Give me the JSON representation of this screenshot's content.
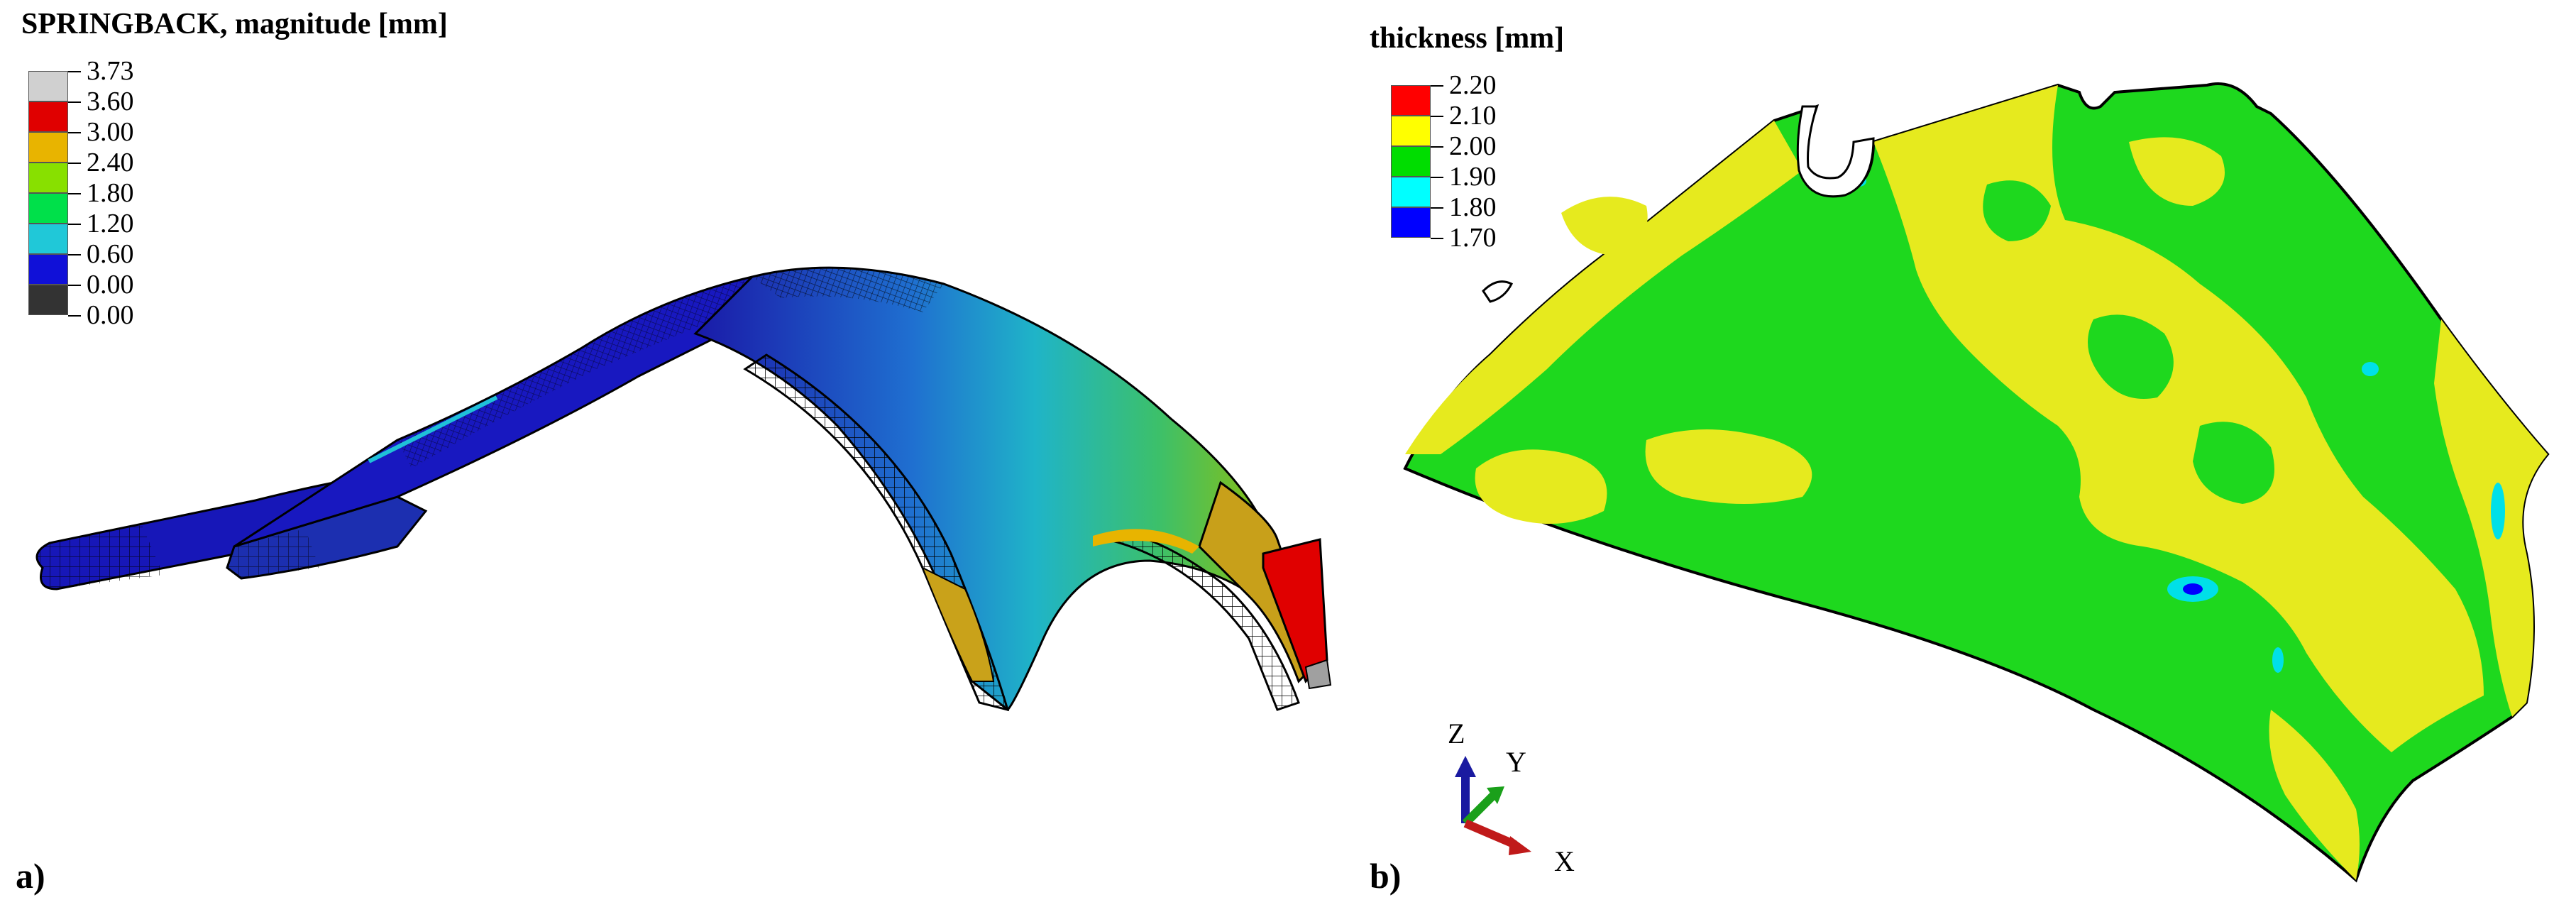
{
  "panel_a": {
    "title": "SPRINGBACK, magnitude [mm]",
    "letter": "a)",
    "legend": [
      {
        "label": "3.73",
        "color": "#d0d0d0"
      },
      {
        "label": "3.60",
        "color": "#e00000"
      },
      {
        "label": "3.00",
        "color": "#e8b400"
      },
      {
        "label": "2.40",
        "color": "#88e000"
      },
      {
        "label": "1.80",
        "color": "#00e04a"
      },
      {
        "label": "1.20",
        "color": "#20c8d8"
      },
      {
        "label": "0.60",
        "color": "#1010d8"
      },
      {
        "label": "0.00",
        "color": "#333333"
      }
    ],
    "legend_last_label": "0.00"
  },
  "panel_b": {
    "title": "thickness [mm]",
    "letter": "b)",
    "legend": [
      {
        "label": "2.20",
        "color": "#ff0000"
      },
      {
        "label": "2.10",
        "color": "#ffff00"
      },
      {
        "label": "2.00",
        "color": "#00dd00"
      },
      {
        "label": "1.90",
        "color": "#00ffff"
      },
      {
        "label": "1.80",
        "color": "#0000ff"
      }
    ],
    "legend_last_label": "1.70",
    "triad": {
      "z": "Z",
      "y": "Y",
      "x": "X"
    }
  }
}
